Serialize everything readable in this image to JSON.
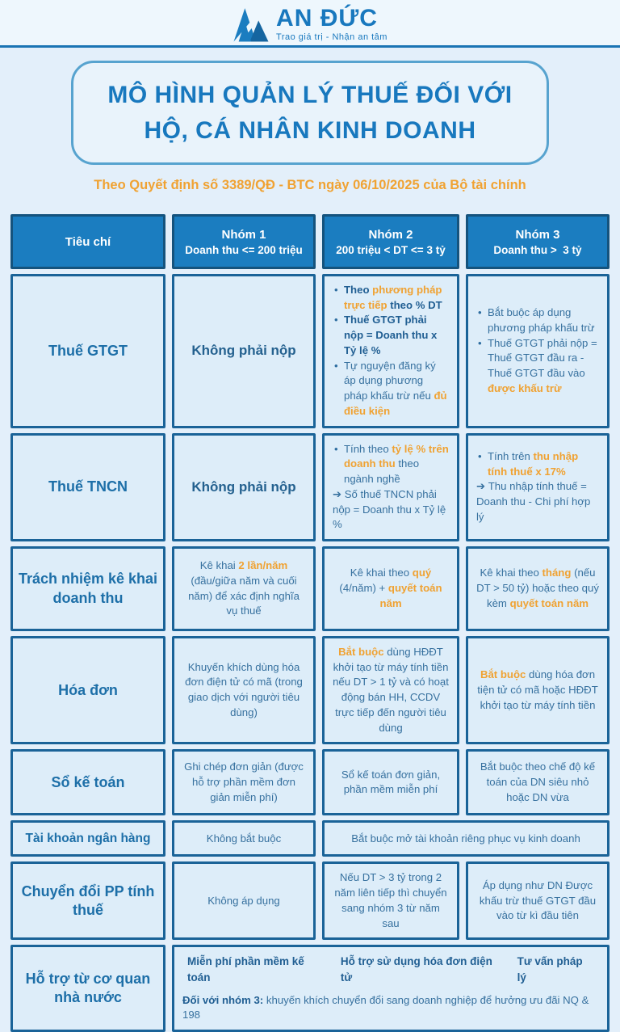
{
  "colors": {
    "accent_blue": "#1b7dc0",
    "dark_border": "#15537d",
    "cell_bg": "#ddedf9",
    "orange": "#f0a232",
    "text_blue": "#37719f",
    "page_bg": "#e3effa"
  },
  "logo": {
    "name": "AN ĐỨC",
    "tagline": "Trao giá trị - Nhận an tâm"
  },
  "title": "MÔ HÌNH QUẢN LÝ THUẾ ĐỐI VỚI HỘ, CÁ NHÂN KINH DOANH",
  "subtitle": "Theo Quyết định số 3389/QĐ - BTC ngày 06/10/2025 của Bộ tài chính",
  "table": {
    "headers": [
      {
        "line1": "Tiêu chí",
        "line2": ""
      },
      {
        "line1": "Nhóm 1",
        "line2": "Doanh thu <= 200 triệu"
      },
      {
        "line1": "Nhóm 2",
        "line2": "200 triệu < DT <= 3 tỷ"
      },
      {
        "line1": "Nhóm 3",
        "line2": "Doanh thu >  3 tỷ"
      }
    ],
    "rows": [
      {
        "label": "Thuế GTGT",
        "cells": [
          {
            "style": "big center",
            "blocks": [
              {
                "segments": [
                  {
                    "t": "Không phải nộp",
                    "s": "plain"
                  }
                ]
              }
            ]
          },
          {
            "style": "",
            "blocks": [
              {
                "marker": "bullet",
                "segments": [
                  {
                    "t": "Theo ",
                    "s": "bold"
                  },
                  {
                    "t": "phương pháp trực tiếp ",
                    "s": "orange"
                  },
                  {
                    "t": "theo % DT",
                    "s": "bold"
                  }
                ]
              },
              {
                "marker": "bullet",
                "segments": [
                  {
                    "t": "Thuế GTGT phải nộp = Doanh thu x Tỷ lệ %",
                    "s": "bold"
                  }
                ]
              },
              {
                "marker": "bullet",
                "segments": [
                  {
                    "t": "Tự nguyện đăng ký áp dụng phương pháp khấu trừ nếu ",
                    "s": "plain"
                  },
                  {
                    "t": "đủ điều kiện",
                    "s": "orange"
                  }
                ]
              }
            ]
          },
          {
            "style": "",
            "blocks": [
              {
                "marker": "bullet",
                "segments": [
                  {
                    "t": "Bắt buộc áp dụng phương pháp khấu trừ",
                    "s": "plain"
                  }
                ]
              },
              {
                "marker": "bullet",
                "segments": [
                  {
                    "t": "Thuế GTGT phải nộp = Thuế GTGT đầu ra - Thuế GTGT đầu vào ",
                    "s": "plain"
                  },
                  {
                    "t": "được khấu trừ",
                    "s": "orange"
                  }
                ]
              }
            ]
          }
        ]
      },
      {
        "label": "Thuế TNCN",
        "cells": [
          {
            "style": "big center",
            "blocks": [
              {
                "segments": [
                  {
                    "t": "Không phải nộp",
                    "s": "plain"
                  }
                ]
              }
            ]
          },
          {
            "style": "",
            "blocks": [
              {
                "marker": "bullet",
                "segments": [
                  {
                    "t": "Tính theo ",
                    "s": "plain"
                  },
                  {
                    "t": "tỷ lệ % trên doanh thu ",
                    "s": "orange"
                  },
                  {
                    "t": "theo ngành nghề",
                    "s": "plain"
                  }
                ]
              },
              {
                "marker": "arrow",
                "segments": [
                  {
                    "t": "Số thuế TNCN phải nộp = Doanh thu x Tỷ lệ %",
                    "s": "plain"
                  }
                ]
              }
            ]
          },
          {
            "style": "",
            "blocks": [
              {
                "marker": "bullet",
                "segments": [
                  {
                    "t": "Tính trên ",
                    "s": "plain"
                  },
                  {
                    "t": "thu nhập tính thuế x 17%",
                    "s": "orange"
                  }
                ]
              },
              {
                "marker": "arrow",
                "segments": [
                  {
                    "t": "Thu nhập tính thuế = Doanh thu - Chi phí hợp lý",
                    "s": "plain"
                  }
                ]
              }
            ]
          }
        ]
      },
      {
        "label": "Trách nhiệm kê khai doanh thu",
        "cells": [
          {
            "style": "center",
            "blocks": [
              {
                "segments": [
                  {
                    "t": "Kê khai ",
                    "s": "plain"
                  },
                  {
                    "t": "2 lần/năm",
                    "s": "orange"
                  },
                  {
                    "t": " (đầu/giữa năm và cuối năm) để xác định nghĩa vụ thuế",
                    "s": "plain"
                  }
                ]
              }
            ]
          },
          {
            "style": "center",
            "blocks": [
              {
                "segments": [
                  {
                    "t": "Kê khai theo ",
                    "s": "plain"
                  },
                  {
                    "t": "quý",
                    "s": "orange"
                  },
                  {
                    "t": " (4/năm) + ",
                    "s": "plain"
                  },
                  {
                    "t": "quyết toán năm",
                    "s": "orange"
                  }
                ]
              }
            ]
          },
          {
            "style": "center",
            "blocks": [
              {
                "segments": [
                  {
                    "t": "Kê khai theo ",
                    "s": "plain"
                  },
                  {
                    "t": "tháng",
                    "s": "orange"
                  },
                  {
                    "t": " (nếu DT > 50 tỷ) hoặc theo quý kèm ",
                    "s": "plain"
                  },
                  {
                    "t": "quyết toán năm",
                    "s": "orange"
                  }
                ]
              }
            ]
          }
        ]
      },
      {
        "label": "Hóa đơn",
        "cells": [
          {
            "style": "center",
            "blocks": [
              {
                "segments": [
                  {
                    "t": "Khuyến khích dùng hóa đơn điện tử có mã (trong giao dịch với người tiêu dùng)",
                    "s": "plain"
                  }
                ]
              }
            ]
          },
          {
            "style": "center",
            "blocks": [
              {
                "segments": [
                  {
                    "t": "Bắt buộc",
                    "s": "orange"
                  },
                  {
                    "t": " dùng HĐĐT khởi tạo từ máy tính tiền nếu DT > 1 tỷ và có hoạt động bán HH, CCDV trực tiếp đến người tiêu dùng",
                    "s": "plain"
                  }
                ]
              }
            ]
          },
          {
            "style": "center",
            "blocks": [
              {
                "segments": [
                  {
                    "t": "Bắt buộc",
                    "s": "orange"
                  },
                  {
                    "t": " dùng hóa đơn tiện tử có mã hoặc HĐĐT khởi tạo từ máy tính tiền",
                    "s": "plain"
                  }
                ]
              }
            ]
          }
        ]
      },
      {
        "label": "Sổ kế toán",
        "cells": [
          {
            "style": "center",
            "blocks": [
              {
                "segments": [
                  {
                    "t": "Ghi chép đơn giản (được hỗ trợ phần mềm đơn giản miễn phí)",
                    "s": "plain"
                  }
                ]
              }
            ]
          },
          {
            "style": "center",
            "blocks": [
              {
                "segments": [
                  {
                    "t": "Sổ kế toán đơn giản, phần mềm miễn phí",
                    "s": "plain"
                  }
                ]
              }
            ]
          },
          {
            "style": "center",
            "blocks": [
              {
                "segments": [
                  {
                    "t": "Bắt buộc theo chế độ kế toán của DN siêu nhỏ hoặc DN vừa",
                    "s": "plain"
                  }
                ]
              }
            ]
          }
        ]
      },
      {
        "label": "Tài khoản ngân hàng",
        "cells": [
          {
            "style": "center",
            "blocks": [
              {
                "segments": [
                  {
                    "t": "Không bắt buộc",
                    "s": "plain"
                  }
                ]
              }
            ]
          },
          {
            "style": "center",
            "span": 2,
            "blocks": [
              {
                "segments": [
                  {
                    "t": "Bắt buộc mở tài khoản riêng phục vụ kinh doanh",
                    "s": "plain"
                  }
                ]
              }
            ]
          }
        ]
      },
      {
        "label": "Chuyển đổi PP tính thuế",
        "cells": [
          {
            "style": "center",
            "blocks": [
              {
                "segments": [
                  {
                    "t": "Không áp dụng",
                    "s": "plain"
                  }
                ]
              }
            ]
          },
          {
            "style": "center",
            "blocks": [
              {
                "segments": [
                  {
                    "t": "Nếu DT > 3 tỷ trong 2 năm liên tiếp thì chuyển sang nhóm 3 từ năm sau",
                    "s": "plain"
                  }
                ]
              }
            ]
          },
          {
            "style": "center",
            "blocks": [
              {
                "segments": [
                  {
                    "t": "Áp dụng như DN Được khấu trừ thuế GTGT đầu vào từ kì đầu tiên",
                    "s": "plain"
                  }
                ]
              }
            ]
          }
        ]
      },
      {
        "label": "Hỗ trợ từ cơ quan nhà nước",
        "cells": [
          {
            "style": "support-cell",
            "span": 3,
            "blocks": [
              {
                "layout": "spread",
                "segments": [
                  {
                    "t": "Miễn phí phần mềm kế toán",
                    "s": "bold"
                  },
                  {
                    "t": "Hỗ trợ sử dụng hóa đơn điện tử",
                    "s": "bold"
                  },
                  {
                    "t": "Tư vấn pháp lý",
                    "s": "bold"
                  }
                ]
              },
              {
                "segments": [
                  {
                    "t": "Đối với nhóm 3: ",
                    "s": "bold"
                  },
                  {
                    "t": "khuyến khích chuyển đổi sang doanh nghiệp để hưởng ưu đãi NQ & 198",
                    "s": "plain"
                  }
                ]
              }
            ]
          }
        ]
      }
    ]
  }
}
